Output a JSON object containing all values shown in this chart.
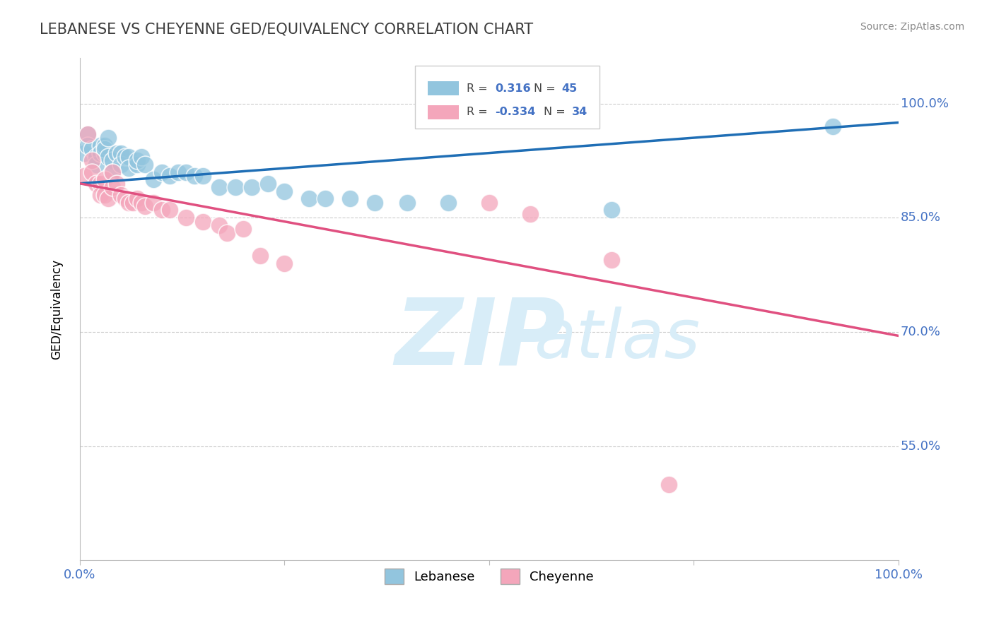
{
  "title": "LEBANESE VS CHEYENNE GED/EQUIVALENCY CORRELATION CHART",
  "source": "Source: ZipAtlas.com",
  "ylabel": "GED/Equivalency",
  "ytick_labels": [
    "100.0%",
    "85.0%",
    "70.0%",
    "55.0%"
  ],
  "ytick_values": [
    1.0,
    0.85,
    0.7,
    0.55
  ],
  "xmin": 0.0,
  "xmax": 1.0,
  "ymin": 0.4,
  "ymax": 1.06,
  "legend_R1_val": "0.316",
  "legend_N1_val": "45",
  "legend_R2_val": "-0.334",
  "legend_N2_val": "34",
  "legend_label1": "Lebanese",
  "legend_label2": "Cheyenne",
  "blue_color": "#92c5de",
  "blue_line_color": "#1f6eb5",
  "pink_color": "#f4a6bb",
  "pink_line_color": "#e05080",
  "title_color": "#3c3c3c",
  "axis_color": "#4472c4",
  "grid_color": "#cccccc",
  "watermark_zip": "ZIP",
  "watermark_atlas": "atlas",
  "watermark_color": "#d8edf8",
  "lebanese_x": [
    0.005,
    0.01,
    0.01,
    0.015,
    0.02,
    0.02,
    0.025,
    0.025,
    0.03,
    0.03,
    0.03,
    0.035,
    0.035,
    0.04,
    0.04,
    0.045,
    0.05,
    0.05,
    0.055,
    0.06,
    0.06,
    0.07,
    0.07,
    0.075,
    0.08,
    0.09,
    0.1,
    0.11,
    0.12,
    0.13,
    0.14,
    0.15,
    0.17,
    0.19,
    0.21,
    0.23,
    0.25,
    0.28,
    0.3,
    0.33,
    0.36,
    0.4,
    0.45,
    0.65,
    0.92
  ],
  "lebanese_y": [
    0.935,
    0.96,
    0.945,
    0.94,
    0.93,
    0.92,
    0.945,
    0.935,
    0.935,
    0.945,
    0.94,
    0.93,
    0.955,
    0.925,
    0.91,
    0.935,
    0.935,
    0.92,
    0.93,
    0.93,
    0.915,
    0.92,
    0.925,
    0.93,
    0.92,
    0.9,
    0.91,
    0.905,
    0.91,
    0.91,
    0.905,
    0.905,
    0.89,
    0.89,
    0.89,
    0.895,
    0.885,
    0.875,
    0.875,
    0.875,
    0.87,
    0.87,
    0.87,
    0.86,
    0.97
  ],
  "cheyenne_x": [
    0.005,
    0.01,
    0.015,
    0.015,
    0.02,
    0.025,
    0.025,
    0.03,
    0.03,
    0.035,
    0.04,
    0.04,
    0.045,
    0.05,
    0.055,
    0.06,
    0.065,
    0.07,
    0.075,
    0.08,
    0.09,
    0.1,
    0.11,
    0.13,
    0.15,
    0.17,
    0.18,
    0.2,
    0.22,
    0.25,
    0.5,
    0.55,
    0.65,
    0.72
  ],
  "cheyenne_y": [
    0.905,
    0.96,
    0.925,
    0.91,
    0.895,
    0.895,
    0.88,
    0.9,
    0.88,
    0.875,
    0.91,
    0.89,
    0.895,
    0.88,
    0.875,
    0.87,
    0.87,
    0.875,
    0.87,
    0.865,
    0.87,
    0.86,
    0.86,
    0.85,
    0.845,
    0.84,
    0.83,
    0.835,
    0.8,
    0.79,
    0.87,
    0.855,
    0.795,
    0.5
  ],
  "blue_trend_y0": 0.895,
  "blue_trend_y1": 0.975,
  "pink_trend_y0": 0.895,
  "pink_trend_y1": 0.695
}
